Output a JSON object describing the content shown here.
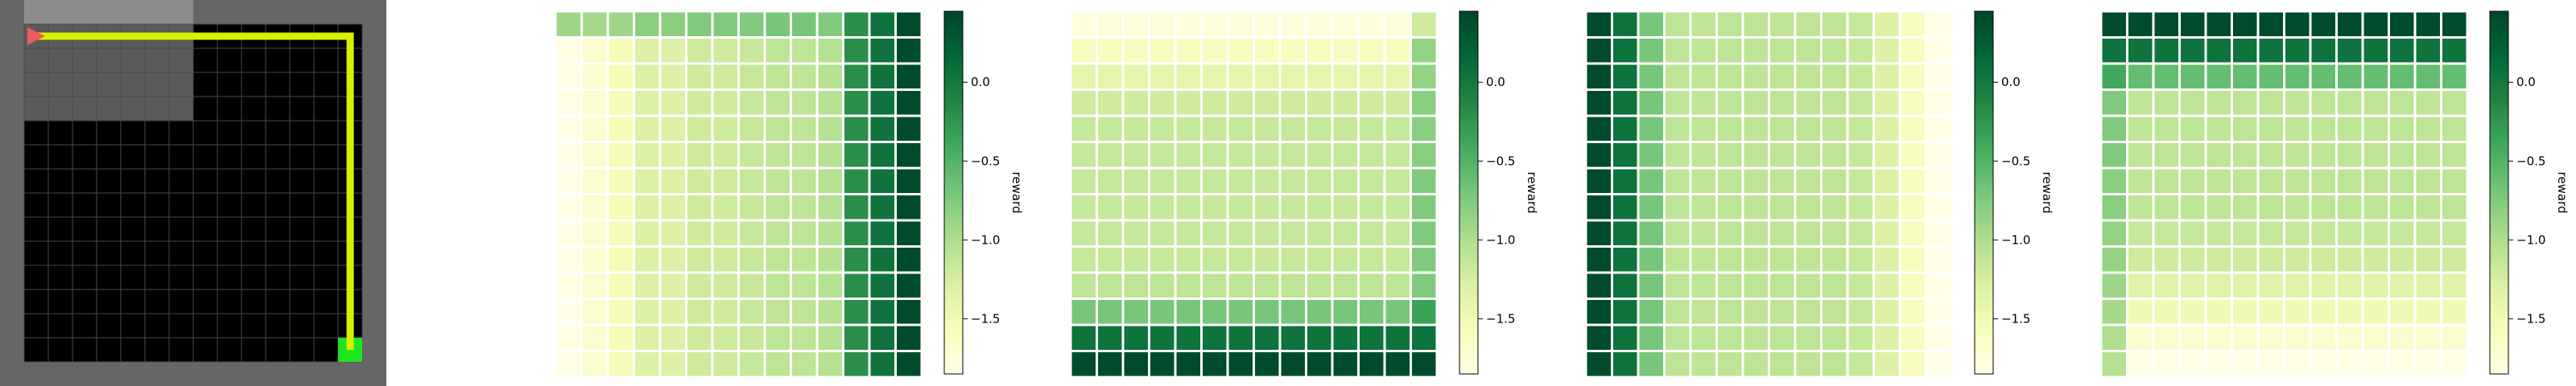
{
  "gridworld": {
    "size": 14,
    "colors": {
      "background": "#666666",
      "floor": "#000000",
      "grid_line": "#4a4a4a",
      "visited_region": "#5a5a5a",
      "top_strip": "#8c8c8c",
      "path": "#d8f000",
      "goal": "#1ee61e",
      "agent": "#f05a5a"
    },
    "agent_cell": [
      0,
      0
    ],
    "goal_cell": [
      13,
      13
    ],
    "path_cells": [
      [
        0,
        0
      ],
      [
        0,
        13
      ],
      [
        13,
        13
      ]
    ]
  },
  "chart_data": [
    {
      "type": "heatmap",
      "colorbar_label": "reward",
      "colorbar_ticks": [
        "0.0",
        "−0.5",
        "−1.0",
        "−1.5"
      ],
      "tick_values": [
        0.0,
        -0.5,
        -1.0,
        -1.5
      ],
      "vmin": -1.85,
      "vmax": 0.45,
      "column_values": [
        -1.85,
        -1.7,
        -1.55,
        -1.3,
        -1.3,
        -1.2,
        -1.2,
        -1.15,
        -1.1,
        -1.1,
        -1.05,
        -0.2,
        0.05,
        0.4
      ],
      "top_row_values": [
        -0.9,
        -0.95,
        -0.9,
        -0.8,
        -0.8,
        -0.75,
        -0.75,
        -0.75,
        -0.7,
        -0.7,
        -0.75,
        -0.2,
        0.05,
        0.4
      ]
    },
    {
      "type": "heatmap",
      "colorbar_label": "reward",
      "colorbar_ticks": [
        "0.0",
        "−0.5",
        "−1.0",
        "−1.5"
      ],
      "tick_values": [
        0.0,
        -0.5,
        -1.0,
        -1.5
      ],
      "vmin": -1.85,
      "vmax": 0.45,
      "row_values": [
        -1.8,
        -1.6,
        -1.4,
        -1.2,
        -1.15,
        -1.15,
        -1.15,
        -1.15,
        -1.15,
        -1.15,
        -1.1,
        -0.7,
        0.05,
        0.4
      ],
      "right_column_values": [
        -1.2,
        -0.85,
        -0.85,
        -0.8,
        -0.8,
        -0.8,
        -0.75,
        -0.75,
        -0.75,
        -0.75,
        -0.75,
        -0.35,
        0.05,
        0.4
      ]
    },
    {
      "type": "heatmap",
      "colorbar_label": "reward",
      "colorbar_ticks": [
        "0.0",
        "−0.5",
        "−1.0",
        "−1.5"
      ],
      "tick_values": [
        0.0,
        -0.5,
        -1.0,
        -1.5
      ],
      "vmin": -1.85,
      "vmax": 0.45,
      "column_values": [
        0.4,
        0.05,
        -0.7,
        -1.1,
        -1.1,
        -1.1,
        -1.1,
        -1.1,
        -1.1,
        -1.1,
        -1.15,
        -1.3,
        -1.6,
        -1.85
      ]
    },
    {
      "type": "heatmap",
      "colorbar_label": "reward",
      "colorbar_ticks": [
        "0.0",
        "−0.5",
        "−1.0",
        "−1.5"
      ],
      "tick_values": [
        0.0,
        -0.5,
        -1.0,
        -1.5
      ],
      "vmin": -1.85,
      "vmax": 0.45,
      "row_values": [
        0.4,
        0.05,
        -0.6,
        -1.1,
        -1.1,
        -1.1,
        -1.1,
        -1.1,
        -1.15,
        -1.2,
        -1.35,
        -1.5,
        -1.7,
        -1.85
      ],
      "left_column_values": [
        0.4,
        0.05,
        -0.4,
        -0.75,
        -0.75,
        -0.75,
        -0.8,
        -0.8,
        -0.85,
        -0.85,
        -0.9,
        -0.95,
        -1.0,
        -1.05
      ]
    }
  ]
}
